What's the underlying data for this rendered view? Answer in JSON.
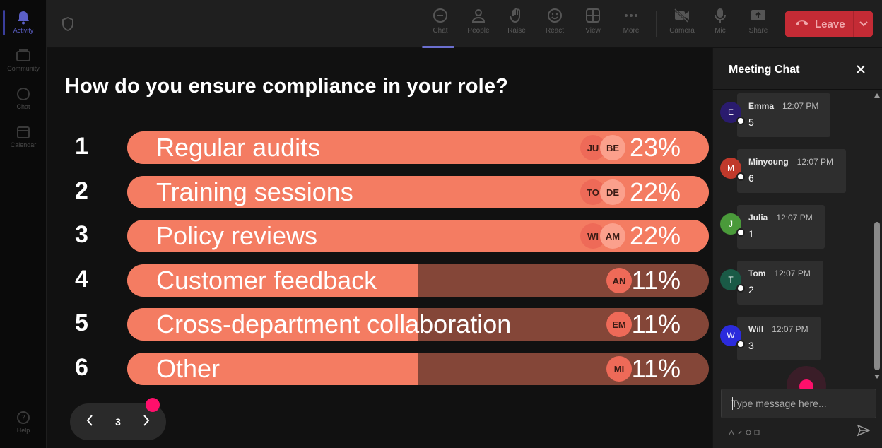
{
  "rail": {
    "items": [
      {
        "label": "Activity",
        "icon": "bell-icon",
        "active": true
      },
      {
        "label": "Community",
        "icon": "community-icon",
        "active": false
      },
      {
        "label": "Chat",
        "icon": "chat-icon",
        "active": false
      },
      {
        "label": "Calendar",
        "icon": "calendar-icon",
        "active": false
      }
    ],
    "help_label": "Help"
  },
  "toolbar": {
    "buttons": [
      {
        "label": "Chat",
        "icon": "chat-icon"
      },
      {
        "label": "People",
        "icon": "people-icon"
      },
      {
        "label": "Raise",
        "icon": "raise-hand-icon"
      },
      {
        "label": "React",
        "icon": "react-icon"
      },
      {
        "label": "View",
        "icon": "view-icon"
      },
      {
        "label": "More",
        "icon": "more-icon"
      },
      {
        "label": "Camera",
        "icon": "camera-off-icon"
      },
      {
        "label": "Mic",
        "icon": "mic-icon"
      },
      {
        "label": "Share",
        "icon": "share-icon"
      }
    ],
    "leave_label": "Leave",
    "colors": {
      "leave": "#c42b35",
      "active_indicator": "#6b6fcf"
    }
  },
  "poll": {
    "question": "How do you ensure compliance in your role?",
    "options": [
      {
        "number": "1",
        "label": "Regular audits",
        "percent_label": "23%",
        "share": 0.23,
        "fill": 1.0,
        "avatars": [
          "JU",
          "BE"
        ]
      },
      {
        "number": "2",
        "label": "Training sessions",
        "percent_label": "22%",
        "share": 0.22,
        "fill": 1.0,
        "avatars": [
          "TO",
          "DE"
        ]
      },
      {
        "number": "3",
        "label": "Policy reviews",
        "percent_label": "22%",
        "share": 0.22,
        "fill": 1.0,
        "avatars": [
          "WI",
          "AM"
        ]
      },
      {
        "number": "4",
        "label": "Customer feedback",
        "percent_label": "11%",
        "share": 0.11,
        "fill": 0.5,
        "avatars": [
          "AN"
        ]
      },
      {
        "number": "5",
        "label": "Cross-department collaboration",
        "percent_label": "11%",
        "share": 0.11,
        "fill": 0.5,
        "avatars": [
          "EM"
        ]
      },
      {
        "number": "6",
        "label": "Other",
        "percent_label": "11%",
        "share": 0.11,
        "fill": 0.5,
        "avatars": [
          "MI"
        ]
      }
    ],
    "colors": {
      "fill": "#f47c62",
      "track": "#844638"
    }
  },
  "pager": {
    "current": "3"
  },
  "chat": {
    "title": "Meeting Chat",
    "messages": [
      {
        "initial": "E",
        "name": "Emma",
        "time": "12:07 PM",
        "text": "5",
        "color": "#2a1b6e"
      },
      {
        "initial": "M",
        "name": "Minyoung",
        "time": "12:07 PM",
        "text": "6",
        "color": "#c0392b"
      },
      {
        "initial": "J",
        "name": "Julia",
        "time": "12:07 PM",
        "text": "1",
        "color": "#4a9a3a"
      },
      {
        "initial": "T",
        "name": "Tom",
        "time": "12:07 PM",
        "text": "2",
        "color": "#1a5a46"
      },
      {
        "initial": "W",
        "name": "Will",
        "time": "12:07 PM",
        "text": "3",
        "color": "#2b2bdc"
      }
    ],
    "input_placeholder": "Type message here..."
  }
}
